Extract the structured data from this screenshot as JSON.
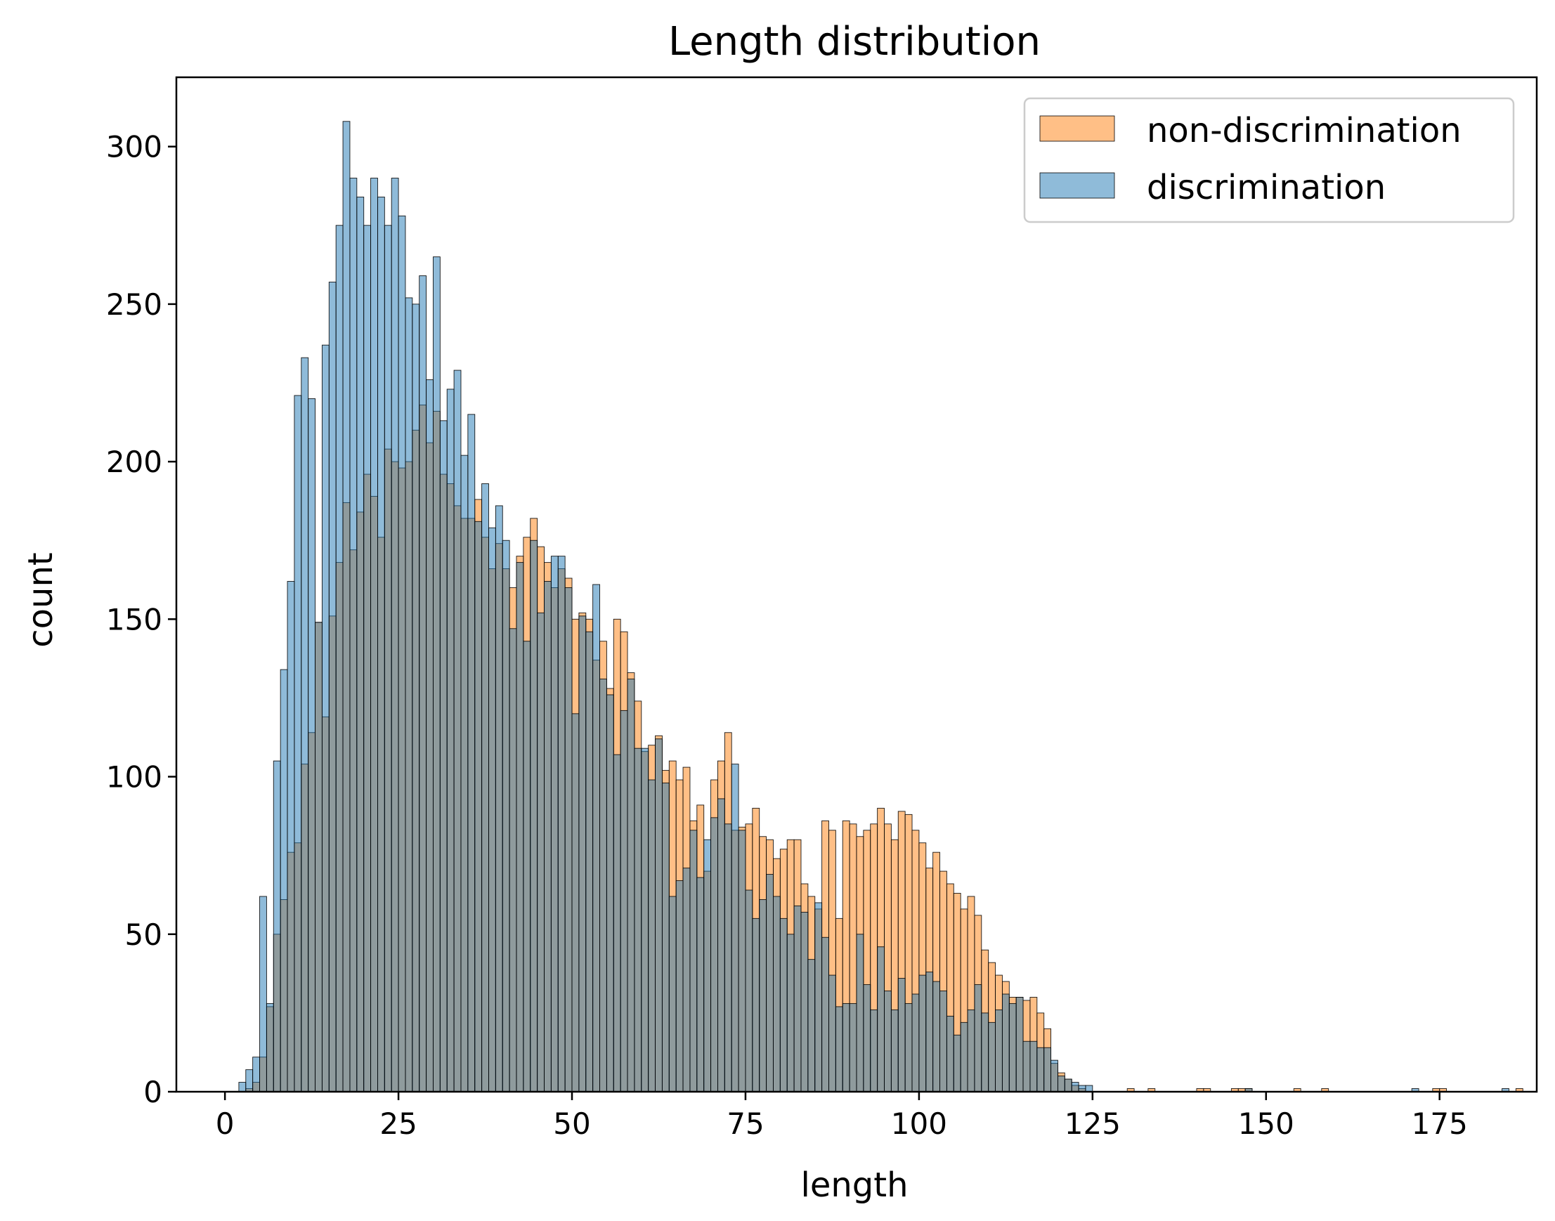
{
  "chart_data": {
    "type": "bar",
    "title": "Length distribution",
    "xlabel": "length",
    "ylabel": "count",
    "xlim": [
      -7,
      189
    ],
    "ylim": [
      0,
      322
    ],
    "xticks": [
      0,
      25,
      50,
      75,
      100,
      125,
      150,
      175
    ],
    "yticks": [
      0,
      50,
      100,
      150,
      200,
      250,
      300
    ],
    "bin_start": 2,
    "bin_width": 1,
    "legend_position": "top-right",
    "grid": false,
    "series": [
      {
        "name": "non-discrimination",
        "color": "#ff7f0e",
        "values": [
          0,
          1,
          3,
          11,
          27,
          50,
          61,
          76,
          79,
          104,
          114,
          149,
          119,
          151,
          168,
          187,
          172,
          184,
          196,
          189,
          176,
          204,
          200,
          198,
          200,
          210,
          218,
          206,
          216,
          196,
          193,
          186,
          182,
          182,
          188,
          176,
          166,
          174,
          166,
          160,
          170,
          176,
          182,
          173,
          168,
          160,
          166,
          163,
          150,
          152,
          150,
          137,
          143,
          128,
          150,
          146,
          133,
          124,
          108,
          110,
          113,
          102,
          105,
          99,
          103,
          86,
          91,
          70,
          99,
          105,
          114,
          83,
          84,
          85,
          90,
          81,
          80,
          74,
          77,
          80,
          80,
          66,
          62,
          58,
          86,
          83,
          55,
          86,
          85,
          81,
          83,
          85,
          90,
          85,
          80,
          89,
          88,
          83,
          79,
          71,
          76,
          70,
          66,
          63,
          58,
          62,
          56,
          45,
          41,
          37,
          35,
          30,
          30,
          29,
          30,
          25,
          20,
          9,
          6,
          4,
          2,
          1,
          0,
          0,
          0,
          0,
          0,
          0,
          1,
          0,
          0,
          1,
          0,
          0,
          0,
          0,
          0,
          0,
          1,
          1,
          0,
          0,
          0,
          1,
          1,
          1,
          0,
          0,
          0,
          0,
          0,
          0,
          1,
          0,
          0,
          0,
          1,
          0,
          0,
          0,
          0,
          0,
          0,
          0,
          0,
          0,
          0,
          0,
          0,
          0,
          0,
          0,
          1,
          1,
          0,
          0,
          0,
          0,
          0,
          0,
          0,
          0,
          0,
          0,
          1
        ]
      },
      {
        "name": "discrimination",
        "color": "#1f77b4",
        "values": [
          3,
          7,
          11,
          62,
          28,
          105,
          134,
          162,
          221,
          233,
          220,
          149,
          237,
          257,
          275,
          308,
          290,
          284,
          275,
          290,
          284,
          275,
          290,
          278,
          252,
          250,
          259,
          226,
          265,
          213,
          223,
          229,
          202,
          215,
          181,
          193,
          179,
          186,
          175,
          147,
          168,
          143,
          175,
          152,
          162,
          170,
          170,
          160,
          120,
          151,
          146,
          161,
          131,
          126,
          107,
          121,
          131,
          109,
          109,
          99,
          112,
          98,
          62,
          67,
          71,
          83,
          68,
          80,
          87,
          93,
          85,
          104,
          83,
          64,
          55,
          61,
          69,
          62,
          55,
          50,
          59,
          57,
          42,
          60,
          49,
          37,
          27,
          28,
          28,
          50,
          34,
          26,
          46,
          32,
          26,
          36,
          28,
          31,
          37,
          38,
          35,
          32,
          24,
          18,
          22,
          26,
          34,
          25,
          22,
          26,
          31,
          28,
          30,
          16,
          16,
          14,
          14,
          10,
          5,
          4,
          3,
          2,
          2,
          0,
          0,
          0,
          0,
          0,
          0,
          0,
          0,
          0,
          0,
          0,
          0,
          0,
          0,
          0,
          0,
          0,
          0,
          0,
          0,
          0,
          0,
          1,
          0,
          0,
          0,
          0,
          0,
          0,
          0,
          0,
          0,
          0,
          0,
          0,
          0,
          0,
          0,
          0,
          0,
          0,
          0,
          0,
          0,
          0,
          0,
          1,
          0,
          0,
          0,
          0,
          0,
          0,
          0,
          0,
          0,
          0,
          0,
          0,
          1,
          0,
          0,
          0,
          0,
          0,
          0,
          0
        ]
      }
    ]
  }
}
